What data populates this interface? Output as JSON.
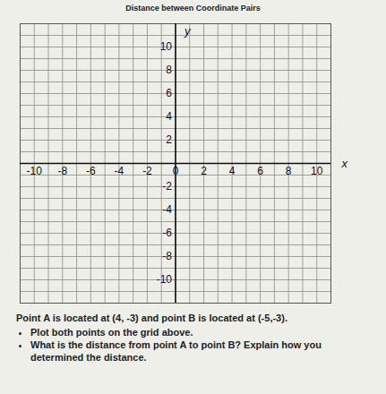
{
  "chart_data": {
    "type": "scatter",
    "title": "Distance between Coordinate Pairs",
    "x_label": "x",
    "y_label": "y",
    "xlim": [
      -11,
      11
    ],
    "ylim": [
      -12,
      12
    ],
    "xticks": [
      -10,
      -8,
      -6,
      -4,
      -2,
      0,
      2,
      4,
      6,
      8,
      10
    ],
    "yticks": [
      -10,
      -8,
      -6,
      -4,
      -2,
      0,
      2,
      4,
      6,
      8,
      10
    ],
    "grid": true,
    "annotations": [
      "Point A is located at (4, -3) and point B is located at (-5,-3).",
      "Plot both points on the grid above.",
      "What is the distance from point A to point B? Explain how you determined the distance."
    ]
  }
}
